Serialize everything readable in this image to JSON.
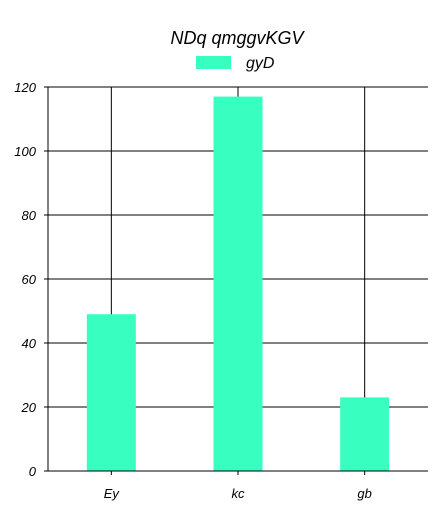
{
  "chart_data": {
    "type": "bar",
    "title": "NDq qmggvKGV",
    "xlabel": "",
    "ylabel": "",
    "categories": [
      "Ey",
      "kc",
      "gb"
    ],
    "series": [
      {
        "name": "gyD",
        "values": [
          49,
          117,
          23
        ],
        "color": "#38FFC0"
      }
    ],
    "ylim": [
      0,
      120
    ],
    "yticks": [
      0,
      20,
      40,
      60,
      80,
      100,
      120
    ],
    "grid": true,
    "legend_position": "top-center"
  }
}
